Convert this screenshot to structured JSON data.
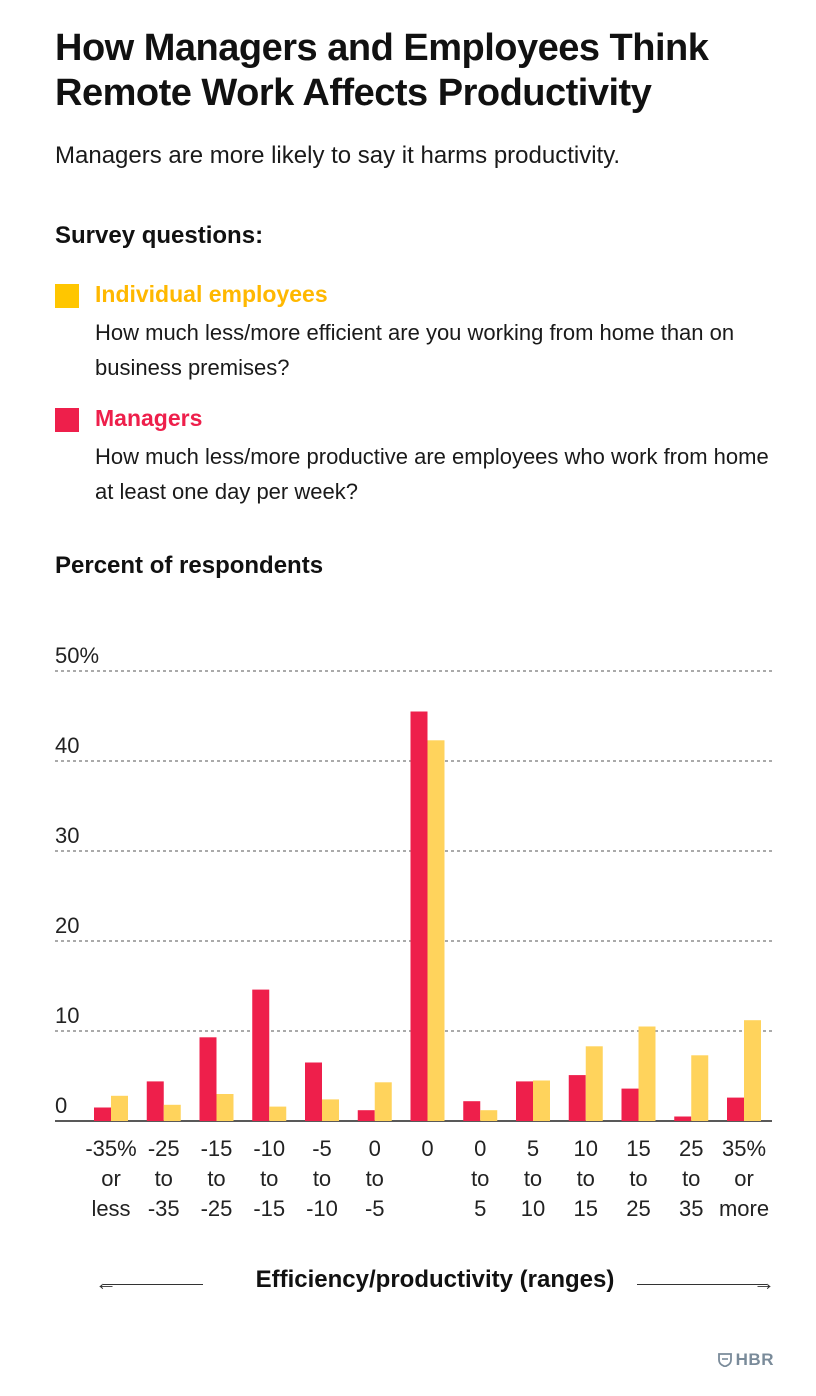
{
  "title": "How Managers and Employees Think Remote Work Affects Productivity",
  "subtitle": "Managers are more likely to say it harms productivity.",
  "survey_heading": "Survey questions:",
  "legend": [
    {
      "label": "Individual employees",
      "question": "How much less/more efficient are you working from home than on business premises?",
      "color": "#ffc600"
    },
    {
      "label": "Managers",
      "question": "How much less/more productive are employees who work from home at least one day per week?",
      "color": "#ee1f4b"
    }
  ],
  "y_axis_title": "Percent of respondents",
  "x_axis_title": "Efficiency/productivity (ranges)",
  "logo_text": "HBR",
  "chart_data": {
    "type": "bar",
    "categories": [
      [
        "-35%",
        "or",
        "less"
      ],
      [
        "-25",
        "to",
        "-35"
      ],
      [
        "-15",
        "to",
        "-25"
      ],
      [
        "-10",
        "to",
        "-15"
      ],
      [
        "-5",
        "to",
        "-10"
      ],
      [
        "0",
        "to",
        "-5"
      ],
      [
        "0"
      ],
      [
        "0",
        "to",
        "5"
      ],
      [
        "5",
        "to",
        "10"
      ],
      [
        "10",
        "to",
        "15"
      ],
      [
        "15",
        "to",
        "25"
      ],
      [
        "25",
        "to",
        "35"
      ],
      [
        "35%",
        "or",
        "more"
      ]
    ],
    "series": [
      {
        "name": "Managers",
        "color": "#ee1f4b",
        "values": [
          1.5,
          4.4,
          9.3,
          14.6,
          6.5,
          1.2,
          45.5,
          2.2,
          4.4,
          5.1,
          3.6,
          0.5,
          2.6
        ]
      },
      {
        "name": "Individual employees",
        "color": "#ffd35c",
        "values": [
          2.8,
          1.8,
          3.0,
          1.6,
          2.4,
          4.3,
          42.3,
          1.2,
          4.5,
          8.3,
          10.5,
          7.3,
          11.2
        ]
      }
    ],
    "yticks": [
      "0",
      "10",
      "20",
      "30",
      "40",
      "50%"
    ],
    "ylim": [
      0,
      50
    ],
    "grid": true
  }
}
